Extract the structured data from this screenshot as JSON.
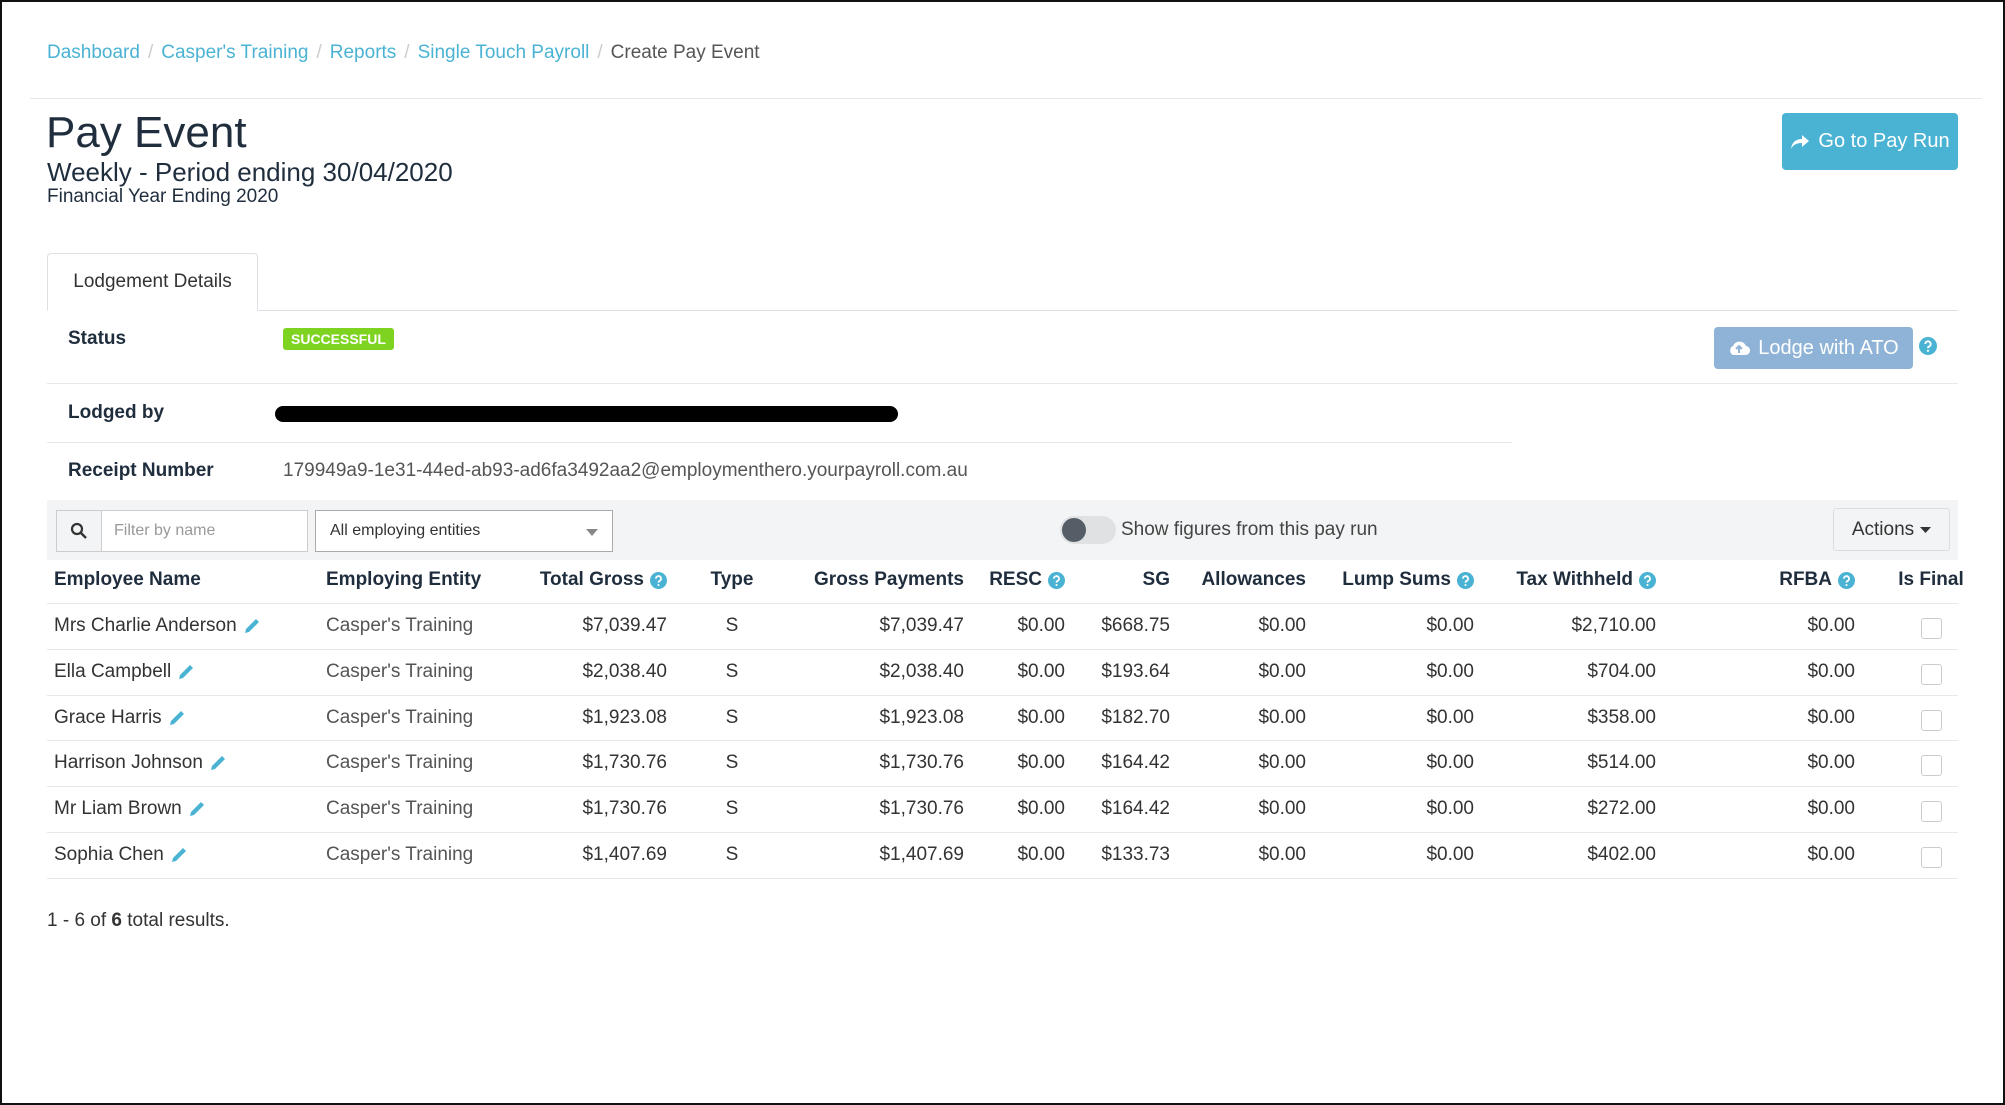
{
  "breadcrumb": {
    "separator": "/",
    "items": [
      "Dashboard",
      "Casper's Training",
      "Reports",
      "Single Touch Payroll",
      "Create Pay Event"
    ]
  },
  "header": {
    "title": "Pay Event",
    "subtitle": "Weekly - Period ending 30/04/2020",
    "financial_year": "Financial Year Ending 2020",
    "button": "Go to Pay Run"
  },
  "tab": "Lodgement Details",
  "details": {
    "status_label": "Status",
    "status": "SUCCESSFUL",
    "lodged_by_label": "Lodged by",
    "receipt_label": "Receipt Number",
    "receipt": "179949a9-1e31-44ed-ab93-ad6fa3492aa2@employmenthero.yourpayroll.com.au",
    "lodge_button": "Lodge with ATO"
  },
  "toolbar": {
    "filter_placeholder": "Filter by name",
    "entity": "All employing entities",
    "toggle_label": "Show figures from this pay run",
    "actions": "Actions"
  },
  "table": {
    "columns": [
      {
        "label": "Employee Name"
      },
      {
        "label": "Employing Entity"
      },
      {
        "label": "Total Gross",
        "help": true
      },
      {
        "label": "Type"
      },
      {
        "label": "Gross Payments"
      },
      {
        "label": "RESC",
        "help": true
      },
      {
        "label": "SG"
      },
      {
        "label": "Allowances"
      },
      {
        "label": "Lump Sums",
        "help": true
      },
      {
        "label": "Tax Withheld",
        "help": true
      },
      {
        "label": "RFBA",
        "help": true
      },
      {
        "label": "Is Final"
      }
    ],
    "rows": [
      [
        "Mrs Charlie Anderson",
        "Casper's Training",
        "$7,039.47",
        "S",
        "$7,039.47",
        "$0.00",
        "$668.75",
        "$0.00",
        "$0.00",
        "$2,710.00",
        "$0.00"
      ],
      [
        "Ella Campbell",
        "Casper's Training",
        "$2,038.40",
        "S",
        "$2,038.40",
        "$0.00",
        "$193.64",
        "$0.00",
        "$0.00",
        "$704.00",
        "$0.00"
      ],
      [
        "Grace Harris",
        "Casper's Training",
        "$1,923.08",
        "S",
        "$1,923.08",
        "$0.00",
        "$182.70",
        "$0.00",
        "$0.00",
        "$358.00",
        "$0.00"
      ],
      [
        "Harrison Johnson",
        "Casper's Training",
        "$1,730.76",
        "S",
        "$1,730.76",
        "$0.00",
        "$164.42",
        "$0.00",
        "$0.00",
        "$514.00",
        "$0.00"
      ],
      [
        "Mr Liam Brown",
        "Casper's Training",
        "$1,730.76",
        "S",
        "$1,730.76",
        "$0.00",
        "$164.42",
        "$0.00",
        "$0.00",
        "$272.00",
        "$0.00"
      ],
      [
        "Sophia Chen",
        "Casper's Training",
        "$1,407.69",
        "S",
        "$1,407.69",
        "$0.00",
        "$133.73",
        "$0.00",
        "$0.00",
        "$402.00",
        "$0.00"
      ]
    ]
  },
  "footer": {
    "prefix": "1 - 6 of ",
    "total": "6",
    "suffix": " total results."
  }
}
